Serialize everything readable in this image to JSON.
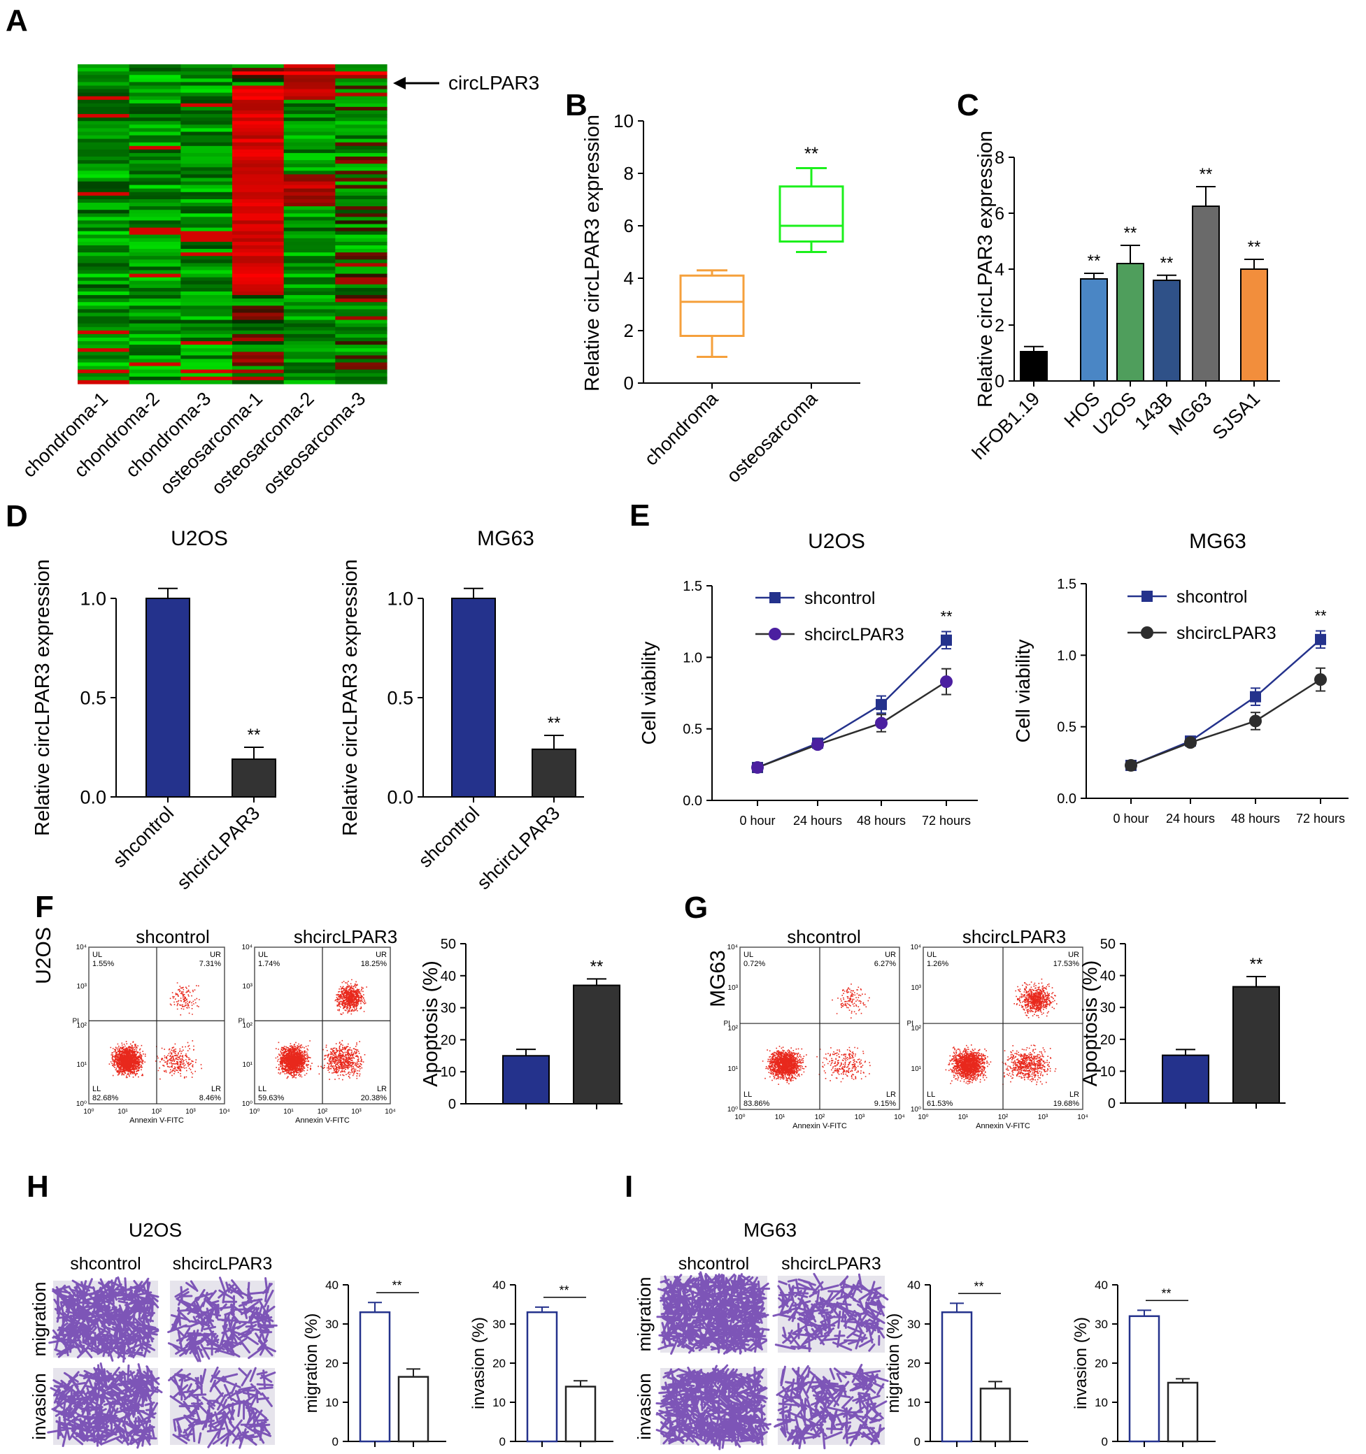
{
  "panels": {
    "A": "A",
    "B": "B",
    "C": "C",
    "D": "D",
    "E": "E",
    "F": "F",
    "G": "G",
    "H": "H",
    "I": "I"
  },
  "colors": {
    "navy": "#24328c",
    "dark": "#333333",
    "green": "#1cf01c",
    "orange": "#f5a03c",
    "red": "#e8281c",
    "purple": "#8a4fbf"
  },
  "heatmap": {
    "arrow_label": "circLPAR3",
    "columns": [
      "chondroma-1",
      "chondroma-2",
      "chondroma-3",
      "osteosarcoma-1",
      "osteosarcoma-2",
      "osteosarcoma-3"
    ],
    "color_scale": [
      "green",
      "black",
      "red"
    ]
  },
  "chart_data": [
    {
      "id": "B",
      "type": "box",
      "ylabel": "Relative circLPAR3 expression",
      "ylim": [
        0,
        10
      ],
      "yticks": [
        0,
        2,
        4,
        6,
        8,
        10
      ],
      "categories": [
        "chondroma",
        "osteosarcoma"
      ],
      "boxes": [
        {
          "min": 1.0,
          "q1": 1.8,
          "median": 3.1,
          "q3": 4.1,
          "max": 4.3,
          "color": "#f5a03c"
        },
        {
          "min": 5.0,
          "q1": 5.4,
          "median": 6.0,
          "q3": 7.5,
          "max": 8.2,
          "color": "#1cf01c"
        }
      ],
      "annotations": [
        "",
        "**"
      ]
    },
    {
      "id": "C",
      "type": "bar",
      "ylabel": "Relative circLPAR3 expression",
      "ylim": [
        0,
        8
      ],
      "yticks": [
        0,
        2,
        4,
        6,
        8
      ],
      "categories": [
        "hFOB1.19",
        "HOS",
        "U2OS",
        "143B",
        "MG63",
        "SJSA1"
      ],
      "values": [
        1.05,
        3.65,
        4.2,
        3.6,
        6.25,
        4.0
      ],
      "errors": [
        0.18,
        0.2,
        0.65,
        0.18,
        0.7,
        0.35
      ],
      "colors": [
        "#000000",
        "#4a86c5",
        "#4f9e5c",
        "#2f5188",
        "#6a6a6a",
        "#f28e3c"
      ],
      "annotations": [
        "",
        "**",
        "**",
        "**",
        "**",
        "**"
      ]
    },
    {
      "id": "D1",
      "type": "bar",
      "title": "U2OS",
      "ylabel": "Relative circLPAR3 expression",
      "ylim": [
        0,
        1.0
      ],
      "yticks": [
        0.0,
        0.5,
        1.0
      ],
      "categories": [
        "shcontrol",
        "shcircLPAR3"
      ],
      "values": [
        1.0,
        0.19
      ],
      "errors": [
        0.05,
        0.06
      ],
      "colors": [
        "#24328c",
        "#333333"
      ],
      "annotations": [
        "",
        "**"
      ]
    },
    {
      "id": "D2",
      "type": "bar",
      "title": "MG63",
      "ylabel": "Relative circLPAR3 expression",
      "ylim": [
        0,
        1.0
      ],
      "yticks": [
        0.0,
        0.5,
        1.0
      ],
      "categories": [
        "shcontrol",
        "shcircLPAR3"
      ],
      "values": [
        1.0,
        0.24
      ],
      "errors": [
        0.05,
        0.07
      ],
      "colors": [
        "#24328c",
        "#333333"
      ],
      "annotations": [
        "",
        "**"
      ]
    },
    {
      "id": "E1",
      "type": "line",
      "title": "U2OS",
      "ylabel": "Cell viability",
      "ylim": [
        0,
        1.5
      ],
      "yticks": [
        0.0,
        0.5,
        1.0,
        1.5
      ],
      "x": [
        "0 hour",
        "24 hours",
        "48 hours",
        "72 hours"
      ],
      "series": [
        {
          "name": "shcontrol",
          "values": [
            0.23,
            0.4,
            0.67,
            1.12
          ],
          "errors": [
            0.03,
            0.02,
            0.06,
            0.06
          ],
          "color": "#24328c",
          "marker": "square"
        },
        {
          "name": "shcircLPAR3",
          "values": [
            0.23,
            0.39,
            0.54,
            0.83
          ],
          "errors": [
            0.03,
            0.02,
            0.06,
            0.09
          ],
          "color": "#2d2d2d",
          "marker": "circle",
          "marker_color": "#4b1fa0"
        }
      ],
      "annotations": [
        "",
        "",
        "",
        "**"
      ]
    },
    {
      "id": "E2",
      "type": "line",
      "title": "MG63",
      "ylabel": "Cell viability",
      "ylim": [
        0,
        1.5
      ],
      "yticks": [
        0.0,
        0.5,
        1.0,
        1.5
      ],
      "x": [
        "0 hour",
        "24 hours",
        "48 hours",
        "72 hours"
      ],
      "series": [
        {
          "name": "shcontrol",
          "values": [
            0.23,
            0.4,
            0.71,
            1.11
          ],
          "errors": [
            0.03,
            0.02,
            0.06,
            0.06
          ],
          "color": "#24328c",
          "marker": "square"
        },
        {
          "name": "shcircLPAR3",
          "values": [
            0.23,
            0.39,
            0.54,
            0.83
          ],
          "errors": [
            0.03,
            0.02,
            0.06,
            0.08
          ],
          "color": "#2d2d2d",
          "marker": "circle",
          "marker_color": "#2d2d2d"
        }
      ],
      "annotations": [
        "",
        "",
        "",
        "**"
      ]
    },
    {
      "id": "F",
      "type": "bar",
      "row_label": "U2OS",
      "ylabel": "Apoptosis (%)",
      "ylim": [
        0,
        50
      ],
      "yticks": [
        0,
        10,
        20,
        30,
        40,
        50
      ],
      "categories": [
        "",
        ""
      ],
      "values": [
        15,
        37
      ],
      "errors": [
        2,
        2
      ],
      "colors": [
        "#24328c",
        "#333333"
      ],
      "annotations": [
        "",
        "**"
      ]
    },
    {
      "id": "G",
      "type": "bar",
      "row_label": "MG63",
      "ylabel": "Apoptosis (%)",
      "ylim": [
        0,
        50
      ],
      "yticks": [
        0,
        10,
        20,
        30,
        40,
        50
      ],
      "categories": [
        "",
        ""
      ],
      "values": [
        15,
        36.5
      ],
      "errors": [
        1.8,
        3.2
      ],
      "colors": [
        "#24328c",
        "#333333"
      ],
      "annotations": [
        "",
        "**"
      ]
    },
    {
      "id": "H1",
      "type": "bar",
      "ylabel": "migration (%)",
      "ylim": [
        0,
        40
      ],
      "yticks": [
        0,
        10,
        20,
        30,
        40
      ],
      "categories": [
        "",
        ""
      ],
      "values": [
        33,
        16.5
      ],
      "errors": [
        2.5,
        2
      ],
      "outline": [
        "#24328c",
        "#222222"
      ],
      "annotations": [
        "**"
      ]
    },
    {
      "id": "H2",
      "type": "bar",
      "ylabel": "invasion (%)",
      "ylim": [
        0,
        40
      ],
      "yticks": [
        0,
        10,
        20,
        30,
        40
      ],
      "categories": [
        "",
        ""
      ],
      "values": [
        33,
        14
      ],
      "errors": [
        1.3,
        1.5
      ],
      "outline": [
        "#24328c",
        "#222222"
      ],
      "annotations": [
        "**"
      ]
    },
    {
      "id": "I1",
      "type": "bar",
      "ylabel": "migration (%)",
      "ylim": [
        0,
        40
      ],
      "yticks": [
        0,
        10,
        20,
        30,
        40
      ],
      "categories": [
        "",
        ""
      ],
      "values": [
        33,
        13.5
      ],
      "errors": [
        2.3,
        1.8
      ],
      "outline": [
        "#24328c",
        "#222222"
      ],
      "annotations": [
        "**"
      ]
    },
    {
      "id": "I2",
      "type": "bar",
      "ylabel": "invasion (%)",
      "ylim": [
        0,
        40
      ],
      "yticks": [
        0,
        10,
        20,
        30,
        40
      ],
      "categories": [
        "",
        ""
      ],
      "values": [
        32,
        15
      ],
      "errors": [
        1.5,
        1
      ],
      "outline": [
        "#24328c",
        "#222222"
      ],
      "annotations": [
        "**"
      ]
    }
  ],
  "flow": {
    "F": {
      "titles": [
        "shcontrol",
        "shcircLPAR3"
      ],
      "quadrants": [
        [
          "UL",
          "1.55%",
          "UR",
          "7.31%",
          "LL",
          "82.68%",
          "LR",
          "8.46%"
        ],
        [
          "UL",
          "1.74%",
          "UR",
          "18.25%",
          "LL",
          "59.63%",
          "LR",
          "20.38%"
        ]
      ]
    },
    "G": {
      "titles": [
        "shcontrol",
        "shcircLPAR3"
      ],
      "quadrants": [
        [
          "UL",
          "0.72%",
          "UR",
          "6.27%",
          "LL",
          "83.86%",
          "LR",
          "9.15%"
        ],
        [
          "UL",
          "1.26%",
          "UR",
          "17.53%",
          "LL",
          "61.53%",
          "LR",
          "19.68%"
        ]
      ]
    },
    "xlabel": "Annexin V-FITC",
    "ylabel": "PI",
    "ticks": [
      "10⁰",
      "10¹",
      "10²",
      "10³",
      "10⁴"
    ]
  },
  "transwell": {
    "H": {
      "title": "U2OS",
      "cols": [
        "shcontrol",
        "shcircLPAR3"
      ],
      "rows": [
        "migration",
        "invasion"
      ]
    },
    "I": {
      "title": "MG63",
      "cols": [
        "shcontrol",
        "shcircLPAR3"
      ],
      "rows": [
        "migration",
        "invasion"
      ]
    }
  }
}
